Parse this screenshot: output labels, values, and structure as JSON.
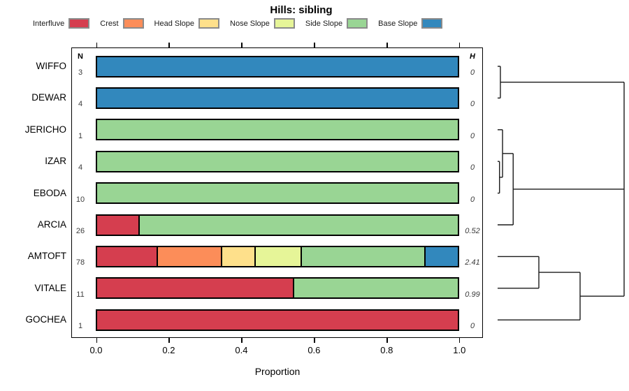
{
  "title": "Hills: sibling",
  "columns": {
    "n_header": "N",
    "h_header": "H"
  },
  "axis": {
    "label": "Proportion",
    "ticks": [
      "0.0",
      "0.2",
      "0.4",
      "0.6",
      "0.8",
      "1.0"
    ],
    "range": [
      0,
      1
    ]
  },
  "legend": {
    "items": [
      {
        "label": "Interfluve",
        "color": "#D53E4F"
      },
      {
        "label": "Crest",
        "color": "#FC8D59"
      },
      {
        "label": "Head Slope",
        "color": "#FEE08B"
      },
      {
        "label": "Nose Slope",
        "color": "#E6F598"
      },
      {
        "label": "Side Slope",
        "color": "#99D594"
      },
      {
        "label": "Base Slope",
        "color": "#3288BD"
      }
    ]
  },
  "chart_data": {
    "type": "bar",
    "orientation": "horizontal",
    "stacked": true,
    "title": "Hills: sibling",
    "xlabel": "Proportion",
    "xlim": [
      0,
      1
    ],
    "grid": false,
    "legend_position": "top",
    "categories": [
      "Interfluve",
      "Crest",
      "Head Slope",
      "Nose Slope",
      "Side Slope",
      "Base Slope"
    ],
    "colors": {
      "Interfluve": "#D53E4F",
      "Crest": "#FC8D59",
      "Head Slope": "#FEE08B",
      "Nose Slope": "#E6F598",
      "Side Slope": "#99D594",
      "Base Slope": "#3288BD"
    },
    "rows": [
      {
        "name": "WIFFO",
        "n": "3",
        "h": "0",
        "segments": [
          {
            "category": "Base Slope",
            "value": 1.0
          }
        ]
      },
      {
        "name": "DEWAR",
        "n": "4",
        "h": "0",
        "segments": [
          {
            "category": "Base Slope",
            "value": 1.0
          }
        ]
      },
      {
        "name": "JERICHO",
        "n": "1",
        "h": "0",
        "segments": [
          {
            "category": "Side Slope",
            "value": 1.0
          }
        ]
      },
      {
        "name": "IZAR",
        "n": "4",
        "h": "0",
        "segments": [
          {
            "category": "Side Slope",
            "value": 1.0
          }
        ]
      },
      {
        "name": "EBODA",
        "n": "10",
        "h": "0",
        "segments": [
          {
            "category": "Side Slope",
            "value": 1.0
          }
        ]
      },
      {
        "name": "ARCIA",
        "n": "26",
        "h": "0.52",
        "segments": [
          {
            "category": "Interfluve",
            "value": 0.115
          },
          {
            "category": "Side Slope",
            "value": 0.885
          }
        ]
      },
      {
        "name": "AMTOFT",
        "n": "78",
        "h": "2.41",
        "segments": [
          {
            "category": "Interfluve",
            "value": 0.167
          },
          {
            "category": "Crest",
            "value": 0.179
          },
          {
            "category": "Head Slope",
            "value": 0.09
          },
          {
            "category": "Nose Slope",
            "value": 0.128
          },
          {
            "category": "Side Slope",
            "value": 0.346
          },
          {
            "category": "Base Slope",
            "value": 0.09
          }
        ]
      },
      {
        "name": "VITALE",
        "n": "11",
        "h": "0.99",
        "segments": [
          {
            "category": "Interfluve",
            "value": 0.545
          },
          {
            "category": "Side Slope",
            "value": 0.455
          }
        ]
      },
      {
        "name": "GOCHEA",
        "n": "1",
        "h": "0",
        "segments": [
          {
            "category": "Interfluve",
            "value": 1.0
          }
        ]
      }
    ],
    "dendrogram": {
      "position": "right",
      "leaf_order": [
        "WIFFO",
        "DEWAR",
        "JERICHO",
        "IZAR",
        "EBODA",
        "ARCIA",
        "AMTOFT",
        "VITALE",
        "GOCHEA"
      ],
      "tree": {
        "height": 1,
        "children": [
          {
            "height": 0.022,
            "children": [
              {
                "leaf": "WIFFO"
              },
              {
                "leaf": "DEWAR"
              }
            ]
          },
          {
            "height": 0.123,
            "children": [
              {
                "height": 0.039,
                "children": [
                  {
                    "leaf": "JERICHO"
                  },
                  {
                    "height": 0.015,
                    "children": [
                      {
                        "leaf": "IZAR"
                      },
                      {
                        "leaf": "EBODA"
                      }
                    ]
                  }
                ]
              },
              {
                "leaf": "ARCIA"
              }
            ]
          },
          {
            "height": 0.652,
            "children": [
              {
                "height": 0.326,
                "children": [
                  {
                    "leaf": "AMTOFT"
                  },
                  {
                    "leaf": "VITALE"
                  }
                ]
              },
              {
                "leaf": "GOCHEA"
              }
            ]
          }
        ]
      }
    }
  }
}
